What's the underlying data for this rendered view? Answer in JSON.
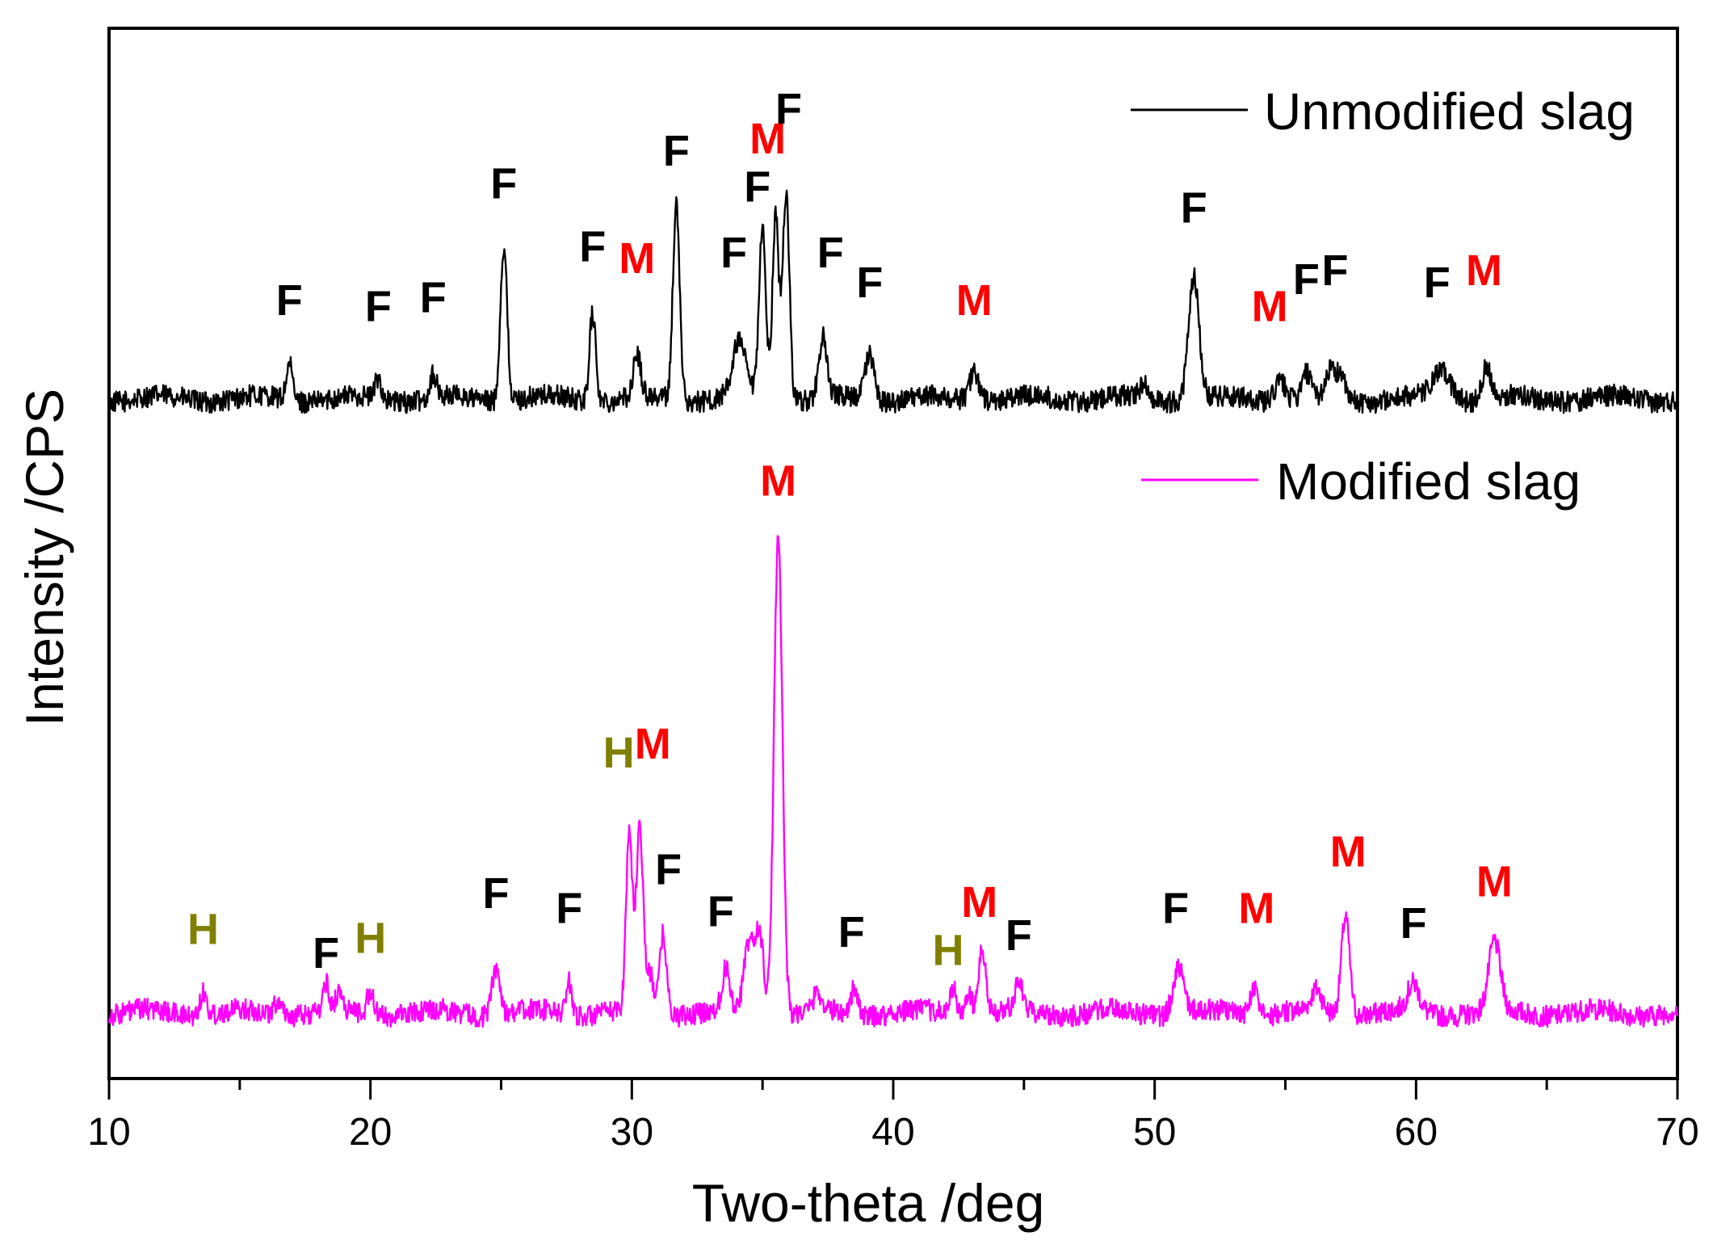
{
  "chart_data": {
    "type": "line",
    "xlabel": "Two-theta /deg",
    "ylabel": "Intensity /CPS",
    "xlim": [
      10,
      70
    ],
    "xticks": [
      "10",
      "20",
      "30",
      "40",
      "50",
      "60",
      "70"
    ],
    "y_ticks_shown": false,
    "grid": false,
    "legend_position": "right, beside each trace",
    "colors": {
      "F": "#000000",
      "M": "#ff0000",
      "H": "#808000"
    },
    "series": [
      {
        "name": "Unmodified slag",
        "color": "#000000",
        "baseline": 22,
        "noise": 1.2,
        "peaks": [
          {
            "x": 16.9,
            "h": 12,
            "w": 0.12
          },
          {
            "x": 20.3,
            "h": 7,
            "w": 0.12
          },
          {
            "x": 22.4,
            "h": 8,
            "w": 0.12
          },
          {
            "x": 25.1,
            "h": 52,
            "w": 0.13
          },
          {
            "x": 28.5,
            "h": 30,
            "w": 0.12
          },
          {
            "x": 30.2,
            "h": 14,
            "w": 0.14
          },
          {
            "x": 31.7,
            "h": 65,
            "w": 0.13
          },
          {
            "x": 34.1,
            "h": 18,
            "w": 0.25
          },
          {
            "x": 35.0,
            "h": 57,
            "w": 0.13
          },
          {
            "x": 35.5,
            "h": 62,
            "w": 0.12
          },
          {
            "x": 35.9,
            "h": 70,
            "w": 0.13
          },
          {
            "x": 37.3,
            "h": 20,
            "w": 0.15
          },
          {
            "x": 39.1,
            "h": 15,
            "w": 0.18
          },
          {
            "x": 43.1,
            "h": 10,
            "w": 0.18
          },
          {
            "x": 49.6,
            "h": 5,
            "w": 0.15
          },
          {
            "x": 51.5,
            "h": 42,
            "w": 0.2
          },
          {
            "x": 54.8,
            "h": 7,
            "w": 0.2
          },
          {
            "x": 55.8,
            "h": 8,
            "w": 0.15
          },
          {
            "x": 56.7,
            "h": 9,
            "w": 0.15
          },
          {
            "x": 57.1,
            "h": 9,
            "w": 0.15
          },
          {
            "x": 61.0,
            "h": 9,
            "w": 0.35
          },
          {
            "x": 62.7,
            "h": 11,
            "w": 0.18
          }
        ]
      },
      {
        "name": "Modified slag",
        "color": "#ff00ff",
        "baseline": 22,
        "noise": 1.2,
        "peaks": [
          {
            "x": 13.6,
            "h": 8,
            "w": 0.12
          },
          {
            "x": 16.5,
            "h": 5,
            "w": 0.15
          },
          {
            "x": 18.3,
            "h": 9,
            "w": 0.12
          },
          {
            "x": 18.8,
            "h": 6,
            "w": 0.12
          },
          {
            "x": 20.0,
            "h": 8,
            "w": 0.12
          },
          {
            "x": 24.8,
            "h": 16,
            "w": 0.15
          },
          {
            "x": 27.6,
            "h": 11,
            "w": 0.12
          },
          {
            "x": 29.9,
            "h": 60,
            "w": 0.12
          },
          {
            "x": 30.3,
            "h": 62,
            "w": 0.13
          },
          {
            "x": 30.7,
            "h": 12,
            "w": 0.15
          },
          {
            "x": 31.2,
            "h": 27,
            "w": 0.13
          },
          {
            "x": 33.6,
            "h": 14,
            "w": 0.15
          },
          {
            "x": 34.5,
            "h": 24,
            "w": 0.2
          },
          {
            "x": 34.9,
            "h": 25,
            "w": 0.15
          },
          {
            "x": 35.6,
            "h": 162,
            "w": 0.16
          },
          {
            "x": 37.1,
            "h": 6,
            "w": 0.15
          },
          {
            "x": 38.5,
            "h": 9,
            "w": 0.12
          },
          {
            "x": 42.3,
            "h": 9,
            "w": 0.12
          },
          {
            "x": 42.9,
            "h": 7,
            "w": 0.12
          },
          {
            "x": 43.4,
            "h": 21,
            "w": 0.14
          },
          {
            "x": 44.8,
            "h": 9,
            "w": 0.15
          },
          {
            "x": 50.9,
            "h": 16,
            "w": 0.2
          },
          {
            "x": 53.8,
            "h": 9,
            "w": 0.15
          },
          {
            "x": 56.2,
            "h": 7,
            "w": 0.2
          },
          {
            "x": 57.3,
            "h": 33,
            "w": 0.16
          },
          {
            "x": 59.9,
            "h": 9,
            "w": 0.22
          },
          {
            "x": 63.0,
            "h": 23,
            "w": 0.22
          }
        ]
      }
    ],
    "annotations": [
      {
        "label": "F",
        "x": 16.9,
        "y": 50,
        "phase": "F"
      },
      {
        "label": "F",
        "x": 20.3,
        "y": 48,
        "phase": "F"
      },
      {
        "label": "F",
        "x": 22.4,
        "y": 51,
        "phase": "F"
      },
      {
        "label": "F",
        "x": 25.1,
        "y": 89,
        "phase": "F"
      },
      {
        "label": "F",
        "x": 28.5,
        "y": 68,
        "phase": "F"
      },
      {
        "label": "M",
        "x": 30.2,
        "y": 64,
        "phase": "M"
      },
      {
        "label": "F",
        "x": 31.7,
        "y": 100,
        "phase": "F"
      },
      {
        "label": "F",
        "x": 33.9,
        "y": 66,
        "phase": "F"
      },
      {
        "label": "F",
        "x": 34.8,
        "y": 88,
        "phase": "F"
      },
      {
        "label": "M",
        "x": 35.2,
        "y": 104,
        "phase": "M"
      },
      {
        "label": "F",
        "x": 36.0,
        "y": 114,
        "phase": "F"
      },
      {
        "label": "F",
        "x": 37.6,
        "y": 66,
        "phase": "F"
      },
      {
        "label": "F",
        "x": 39.1,
        "y": 56,
        "phase": "F"
      },
      {
        "label": "M",
        "x": 43.1,
        "y": 50,
        "phase": "M"
      },
      {
        "label": "F",
        "x": 51.5,
        "y": 81,
        "phase": "F"
      },
      {
        "label": "M",
        "x": 54.4,
        "y": 48,
        "phase": "M"
      },
      {
        "label": "F",
        "x": 55.8,
        "y": 57,
        "phase": "F"
      },
      {
        "label": "F",
        "x": 56.9,
        "y": 60,
        "phase": "F"
      },
      {
        "label": "F",
        "x": 60.8,
        "y": 56,
        "phase": "F"
      },
      {
        "label": "M",
        "x": 62.6,
        "y": 60,
        "phase": "M"
      },
      {
        "label": "M",
        "x": 35.6,
        "y": 195,
        "phase": "M"
      },
      {
        "label": "H",
        "x": 13.6,
        "y": 45,
        "phase": "H"
      },
      {
        "label": "F",
        "x": 18.3,
        "y": 37,
        "phase": "F"
      },
      {
        "label": "H",
        "x": 20.0,
        "y": 42,
        "phase": "H"
      },
      {
        "label": "F",
        "x": 24.8,
        "y": 57,
        "phase": "F"
      },
      {
        "label": "F",
        "x": 27.6,
        "y": 52,
        "phase": "F"
      },
      {
        "label": "H",
        "x": 29.5,
        "y": 104,
        "phase": "H"
      },
      {
        "label": "M",
        "x": 30.8,
        "y": 107,
        "phase": "M"
      },
      {
        "label": "F",
        "x": 31.4,
        "y": 65,
        "phase": "F"
      },
      {
        "label": "F",
        "x": 33.4,
        "y": 51,
        "phase": "F"
      },
      {
        "label": "F",
        "x": 38.4,
        "y": 44,
        "phase": "F"
      },
      {
        "label": "H",
        "x": 42.1,
        "y": 38,
        "phase": "H"
      },
      {
        "label": "M",
        "x": 43.3,
        "y": 54,
        "phase": "M"
      },
      {
        "label": "F",
        "x": 44.8,
        "y": 43,
        "phase": "F"
      },
      {
        "label": "F",
        "x": 50.8,
        "y": 52,
        "phase": "F"
      },
      {
        "label": "M",
        "x": 53.9,
        "y": 52,
        "phase": "M"
      },
      {
        "label": "M",
        "x": 57.4,
        "y": 71,
        "phase": "M"
      },
      {
        "label": "F",
        "x": 59.9,
        "y": 47,
        "phase": "F"
      },
      {
        "label": "M",
        "x": 63.0,
        "y": 61,
        "phase": "M"
      }
    ]
  }
}
